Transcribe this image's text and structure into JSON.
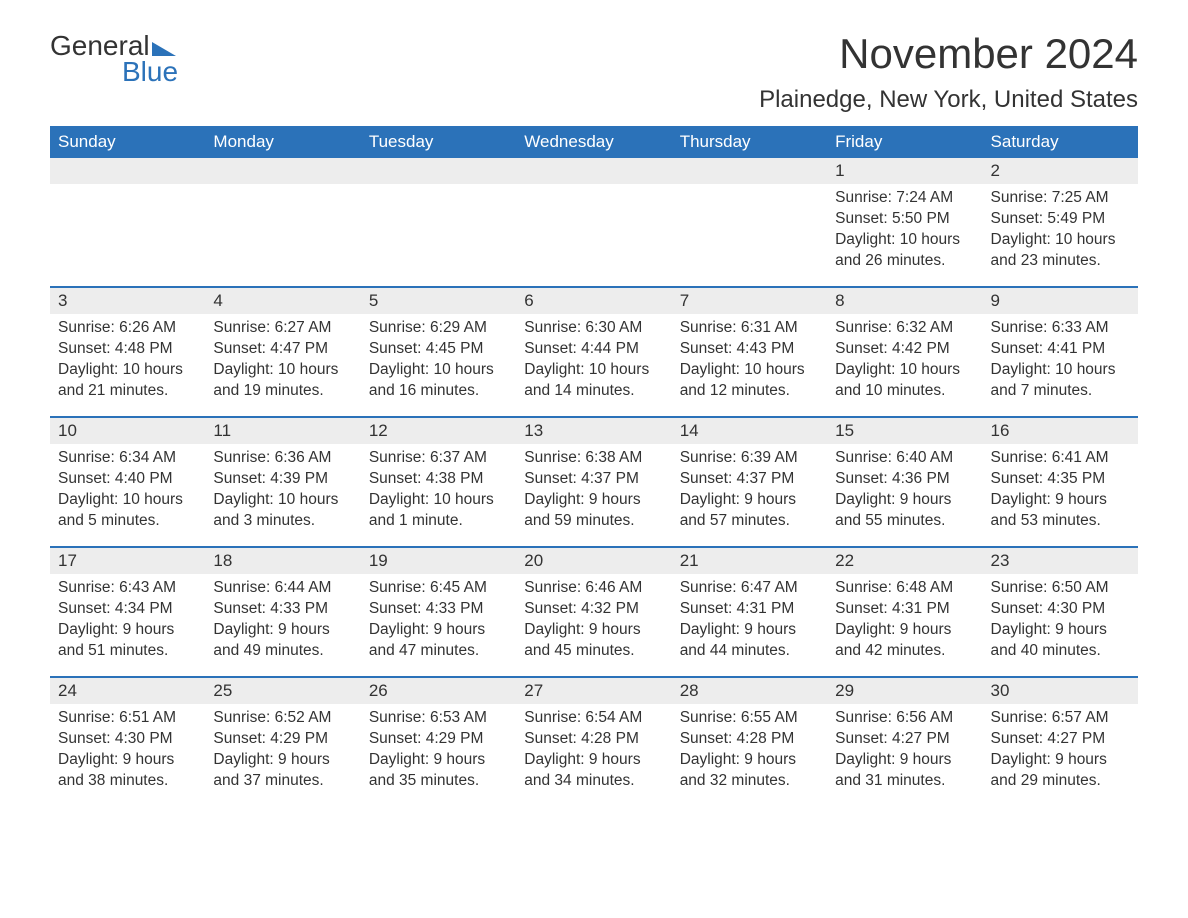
{
  "logo": {
    "word1": "General",
    "word2": "Blue"
  },
  "title": "November 2024",
  "location": "Plainedge, New York, United States",
  "colors": {
    "header_bg": "#2b72b9",
    "header_text": "#ffffff",
    "daynum_bg": "#ededed",
    "border": "#2b72b9",
    "text": "#333333",
    "background": "#ffffff"
  },
  "weekdays": [
    "Sunday",
    "Monday",
    "Tuesday",
    "Wednesday",
    "Thursday",
    "Friday",
    "Saturday"
  ],
  "weeks": [
    [
      {
        "day": "",
        "sunrise": "",
        "sunset": "",
        "daylight": ""
      },
      {
        "day": "",
        "sunrise": "",
        "sunset": "",
        "daylight": ""
      },
      {
        "day": "",
        "sunrise": "",
        "sunset": "",
        "daylight": ""
      },
      {
        "day": "",
        "sunrise": "",
        "sunset": "",
        "daylight": ""
      },
      {
        "day": "",
        "sunrise": "",
        "sunset": "",
        "daylight": ""
      },
      {
        "day": "1",
        "sunrise": "Sunrise: 7:24 AM",
        "sunset": "Sunset: 5:50 PM",
        "daylight": "Daylight: 10 hours and 26 minutes."
      },
      {
        "day": "2",
        "sunrise": "Sunrise: 7:25 AM",
        "sunset": "Sunset: 5:49 PM",
        "daylight": "Daylight: 10 hours and 23 minutes."
      }
    ],
    [
      {
        "day": "3",
        "sunrise": "Sunrise: 6:26 AM",
        "sunset": "Sunset: 4:48 PM",
        "daylight": "Daylight: 10 hours and 21 minutes."
      },
      {
        "day": "4",
        "sunrise": "Sunrise: 6:27 AM",
        "sunset": "Sunset: 4:47 PM",
        "daylight": "Daylight: 10 hours and 19 minutes."
      },
      {
        "day": "5",
        "sunrise": "Sunrise: 6:29 AM",
        "sunset": "Sunset: 4:45 PM",
        "daylight": "Daylight: 10 hours and 16 minutes."
      },
      {
        "day": "6",
        "sunrise": "Sunrise: 6:30 AM",
        "sunset": "Sunset: 4:44 PM",
        "daylight": "Daylight: 10 hours and 14 minutes."
      },
      {
        "day": "7",
        "sunrise": "Sunrise: 6:31 AM",
        "sunset": "Sunset: 4:43 PM",
        "daylight": "Daylight: 10 hours and 12 minutes."
      },
      {
        "day": "8",
        "sunrise": "Sunrise: 6:32 AM",
        "sunset": "Sunset: 4:42 PM",
        "daylight": "Daylight: 10 hours and 10 minutes."
      },
      {
        "day": "9",
        "sunrise": "Sunrise: 6:33 AM",
        "sunset": "Sunset: 4:41 PM",
        "daylight": "Daylight: 10 hours and 7 minutes."
      }
    ],
    [
      {
        "day": "10",
        "sunrise": "Sunrise: 6:34 AM",
        "sunset": "Sunset: 4:40 PM",
        "daylight": "Daylight: 10 hours and 5 minutes."
      },
      {
        "day": "11",
        "sunrise": "Sunrise: 6:36 AM",
        "sunset": "Sunset: 4:39 PM",
        "daylight": "Daylight: 10 hours and 3 minutes."
      },
      {
        "day": "12",
        "sunrise": "Sunrise: 6:37 AM",
        "sunset": "Sunset: 4:38 PM",
        "daylight": "Daylight: 10 hours and 1 minute."
      },
      {
        "day": "13",
        "sunrise": "Sunrise: 6:38 AM",
        "sunset": "Sunset: 4:37 PM",
        "daylight": "Daylight: 9 hours and 59 minutes."
      },
      {
        "day": "14",
        "sunrise": "Sunrise: 6:39 AM",
        "sunset": "Sunset: 4:37 PM",
        "daylight": "Daylight: 9 hours and 57 minutes."
      },
      {
        "day": "15",
        "sunrise": "Sunrise: 6:40 AM",
        "sunset": "Sunset: 4:36 PM",
        "daylight": "Daylight: 9 hours and 55 minutes."
      },
      {
        "day": "16",
        "sunrise": "Sunrise: 6:41 AM",
        "sunset": "Sunset: 4:35 PM",
        "daylight": "Daylight: 9 hours and 53 minutes."
      }
    ],
    [
      {
        "day": "17",
        "sunrise": "Sunrise: 6:43 AM",
        "sunset": "Sunset: 4:34 PM",
        "daylight": "Daylight: 9 hours and 51 minutes."
      },
      {
        "day": "18",
        "sunrise": "Sunrise: 6:44 AM",
        "sunset": "Sunset: 4:33 PM",
        "daylight": "Daylight: 9 hours and 49 minutes."
      },
      {
        "day": "19",
        "sunrise": "Sunrise: 6:45 AM",
        "sunset": "Sunset: 4:33 PM",
        "daylight": "Daylight: 9 hours and 47 minutes."
      },
      {
        "day": "20",
        "sunrise": "Sunrise: 6:46 AM",
        "sunset": "Sunset: 4:32 PM",
        "daylight": "Daylight: 9 hours and 45 minutes."
      },
      {
        "day": "21",
        "sunrise": "Sunrise: 6:47 AM",
        "sunset": "Sunset: 4:31 PM",
        "daylight": "Daylight: 9 hours and 44 minutes."
      },
      {
        "day": "22",
        "sunrise": "Sunrise: 6:48 AM",
        "sunset": "Sunset: 4:31 PM",
        "daylight": "Daylight: 9 hours and 42 minutes."
      },
      {
        "day": "23",
        "sunrise": "Sunrise: 6:50 AM",
        "sunset": "Sunset: 4:30 PM",
        "daylight": "Daylight: 9 hours and 40 minutes."
      }
    ],
    [
      {
        "day": "24",
        "sunrise": "Sunrise: 6:51 AM",
        "sunset": "Sunset: 4:30 PM",
        "daylight": "Daylight: 9 hours and 38 minutes."
      },
      {
        "day": "25",
        "sunrise": "Sunrise: 6:52 AM",
        "sunset": "Sunset: 4:29 PM",
        "daylight": "Daylight: 9 hours and 37 minutes."
      },
      {
        "day": "26",
        "sunrise": "Sunrise: 6:53 AM",
        "sunset": "Sunset: 4:29 PM",
        "daylight": "Daylight: 9 hours and 35 minutes."
      },
      {
        "day": "27",
        "sunrise": "Sunrise: 6:54 AM",
        "sunset": "Sunset: 4:28 PM",
        "daylight": "Daylight: 9 hours and 34 minutes."
      },
      {
        "day": "28",
        "sunrise": "Sunrise: 6:55 AM",
        "sunset": "Sunset: 4:28 PM",
        "daylight": "Daylight: 9 hours and 32 minutes."
      },
      {
        "day": "29",
        "sunrise": "Sunrise: 6:56 AM",
        "sunset": "Sunset: 4:27 PM",
        "daylight": "Daylight: 9 hours and 31 minutes."
      },
      {
        "day": "30",
        "sunrise": "Sunrise: 6:57 AM",
        "sunset": "Sunset: 4:27 PM",
        "daylight": "Daylight: 9 hours and 29 minutes."
      }
    ]
  ]
}
